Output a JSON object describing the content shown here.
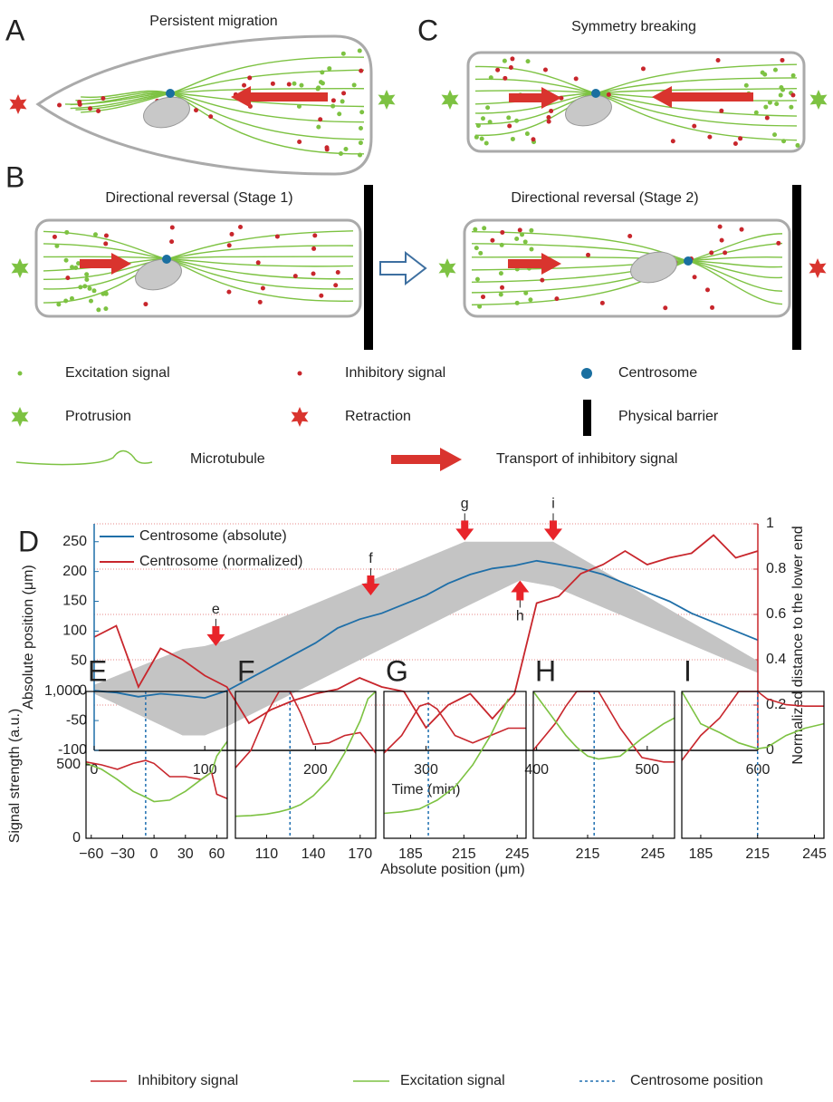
{
  "figure": {
    "panels": [
      {
        "label": "A",
        "title": "Persistent migration"
      },
      {
        "label": "C",
        "title": "Symmetry breaking"
      },
      {
        "label": "B",
        "title": "Directional reversal (Stage 1)"
      },
      {
        "title": "Directional reversal (Stage 2)"
      }
    ],
    "legend": [
      "Excitation signal",
      "Inhibitory signal",
      "Centrosome",
      "Protrusion",
      "Retraction",
      "Physical barrier",
      "Microtubule",
      "Transport of inhibitory signal"
    ]
  },
  "chart_data": [
    {
      "type": "line",
      "label": "D",
      "xlabel": "Time (min)",
      "ylabel": "Absolute position (μm)",
      "y2label": "Normalized distance to the lower end",
      "xlim": [
        0,
        600
      ],
      "xticks": [
        0,
        100,
        200,
        300,
        400,
        500,
        600
      ],
      "ylim": [
        -100,
        280
      ],
      "yticks": [
        -100,
        -50,
        0,
        50,
        100,
        150,
        200,
        250
      ],
      "y2lim": [
        0,
        1
      ],
      "y2ticks": [
        0,
        0.2,
        0.4,
        0.6,
        0.8,
        1
      ],
      "grid": true,
      "legend": "upper left",
      "x": [
        0,
        20,
        40,
        60,
        80,
        100,
        120,
        140,
        160,
        180,
        200,
        220,
        240,
        260,
        280,
        300,
        320,
        340,
        360,
        380,
        400,
        420,
        440,
        460,
        480,
        500,
        520,
        540,
        560,
        580,
        600
      ],
      "series": [
        {
          "name": "Centrosome (absolute)",
          "color": "#1f6fa8",
          "values": [
            0,
            -3,
            -10,
            -5,
            -8,
            -12,
            0,
            20,
            40,
            60,
            80,
            105,
            120,
            130,
            145,
            160,
            180,
            195,
            205,
            210,
            218,
            212,
            205,
            195,
            180,
            165,
            150,
            130,
            115,
            100,
            85
          ]
        },
        {
          "name": "Centrosome (normalized)",
          "color": "#c8262c",
          "axis": "y2",
          "values": [
            0.5,
            0.55,
            0.28,
            0.45,
            0.4,
            0.33,
            0.28,
            0.12,
            0.18,
            0.22,
            0.25,
            0.27,
            0.32,
            0.28,
            0.26,
            0.1,
            0.2,
            0.25,
            0.14,
            0.25,
            0.65,
            0.68,
            0.78,
            0.82,
            0.88,
            0.82,
            0.85,
            0.87,
            0.95,
            0.85,
            0.88
          ]
        }
      ],
      "cell_extent": {
        "color": "#c4c4c4",
        "x": [
          0,
          80,
          100,
          120,
          335,
          385,
          415,
          600
        ],
        "upper": [
          10,
          70,
          75,
          85,
          250,
          250,
          250,
          50
        ],
        "lower": [
          -5,
          -75,
          -75,
          -60,
          140,
          185,
          175,
          30
        ]
      },
      "annotations": [
        {
          "text": "e",
          "x": 110,
          "y": 75,
          "direction": "down"
        },
        {
          "text": "f",
          "x": 250,
          "y": 160,
          "direction": "down"
        },
        {
          "text": "g",
          "x": 335,
          "y": 252,
          "direction": "down"
        },
        {
          "text": "h",
          "x": 385,
          "y": 185,
          "direction": "up"
        },
        {
          "text": "i",
          "x": 415,
          "y": 252,
          "direction": "down"
        }
      ]
    },
    {
      "type": "line",
      "label": "E",
      "ylabel": "Signal strength (a.u.)",
      "xlabel": "Absolute position (μm)",
      "xlim": [
        -65,
        70
      ],
      "xticks": [
        {
          "value": -60,
          "label": "−60"
        },
        {
          "value": -30,
          "label": "−30"
        },
        0,
        30,
        60
      ],
      "ylim": [
        0,
        1000
      ],
      "yticks": [
        0,
        500,
        {
          "value": 1000,
          "label": "1,000"
        }
      ],
      "centrosome": -8,
      "centrosome_color": "#1f6fb0",
      "centrosome_name": "Centrosome position",
      "x": [
        -65,
        -50,
        -35,
        -20,
        -8,
        0,
        15,
        30,
        45,
        55,
        60,
        70
      ],
      "series": [
        {
          "name": "Inhibitory signal",
          "color": "#c8262c",
          "values": [
            520,
            500,
            470,
            510,
            530,
            510,
            420,
            420,
            400,
            450,
            300,
            270
          ]
        },
        {
          "name": "Excitation signal",
          "color": "#7dc242",
          "values": [
            510,
            470,
            400,
            320,
            280,
            250,
            260,
            320,
            400,
            450,
            560,
            660
          ]
        }
      ]
    },
    {
      "type": "line",
      "label": "F",
      "xlim": [
        90,
        180
      ],
      "xticks": [
        110,
        140,
        170
      ],
      "ylim": [
        0,
        1000
      ],
      "centrosome": 125,
      "x": [
        90,
        100,
        110,
        118,
        125,
        132,
        140,
        150,
        160,
        170,
        175,
        180
      ],
      "series": [
        {
          "color": "#c8262c",
          "values": [
            480,
            600,
            850,
            1000,
            1000,
            850,
            640,
            650,
            700,
            720,
            650,
            580
          ]
        },
        {
          "color": "#7dc242",
          "values": [
            150,
            155,
            165,
            180,
            200,
            230,
            290,
            400,
            580,
            800,
            950,
            1000
          ]
        }
      ]
    },
    {
      "type": "line",
      "label": "G",
      "xlim": [
        170,
        250
      ],
      "xticks": [
        185,
        215,
        245
      ],
      "ylim": [
        0,
        1000
      ],
      "centrosome": 195,
      "x": [
        170,
        180,
        190,
        195,
        200,
        210,
        220,
        230,
        240,
        250
      ],
      "series": [
        {
          "color": "#c8262c",
          "values": [
            580,
            700,
            900,
            920,
            880,
            700,
            650,
            700,
            750,
            750
          ]
        },
        {
          "color": "#7dc242",
          "values": [
            170,
            180,
            200,
            230,
            260,
            350,
            500,
            700,
            950,
            null
          ]
        }
      ]
    },
    {
      "type": "line",
      "label": "H",
      "xlim": [
        190,
        255
      ],
      "xticks": [
        215,
        245
      ],
      "ylim": [
        0,
        1000
      ],
      "centrosome": 218,
      "x": [
        190,
        200,
        205,
        210,
        215,
        220,
        230,
        240,
        250,
        255
      ],
      "series": [
        {
          "color": "#c8262c",
          "values": [
            600,
            780,
            900,
            1000,
            1000,
            1000,
            750,
            550,
            520,
            520
          ]
        },
        {
          "color": "#7dc242",
          "values": [
            1000,
            800,
            700,
            620,
            560,
            540,
            560,
            680,
            780,
            820
          ]
        }
      ]
    },
    {
      "type": "line",
      "label": "I",
      "xlim": [
        175,
        250
      ],
      "xticks": [
        185,
        215,
        245
      ],
      "ylim": [
        0,
        1000
      ],
      "centrosome": 215,
      "x": [
        175,
        185,
        195,
        205,
        215,
        220,
        230,
        240,
        250
      ],
      "series": [
        {
          "color": "#c8262c",
          "values": [
            530,
            700,
            820,
            1000,
            1000,
            950,
            910,
            900,
            900
          ]
        },
        {
          "color": "#7dc242",
          "values": [
            1000,
            780,
            720,
            650,
            610,
            620,
            700,
            750,
            780
          ]
        }
      ]
    }
  ]
}
